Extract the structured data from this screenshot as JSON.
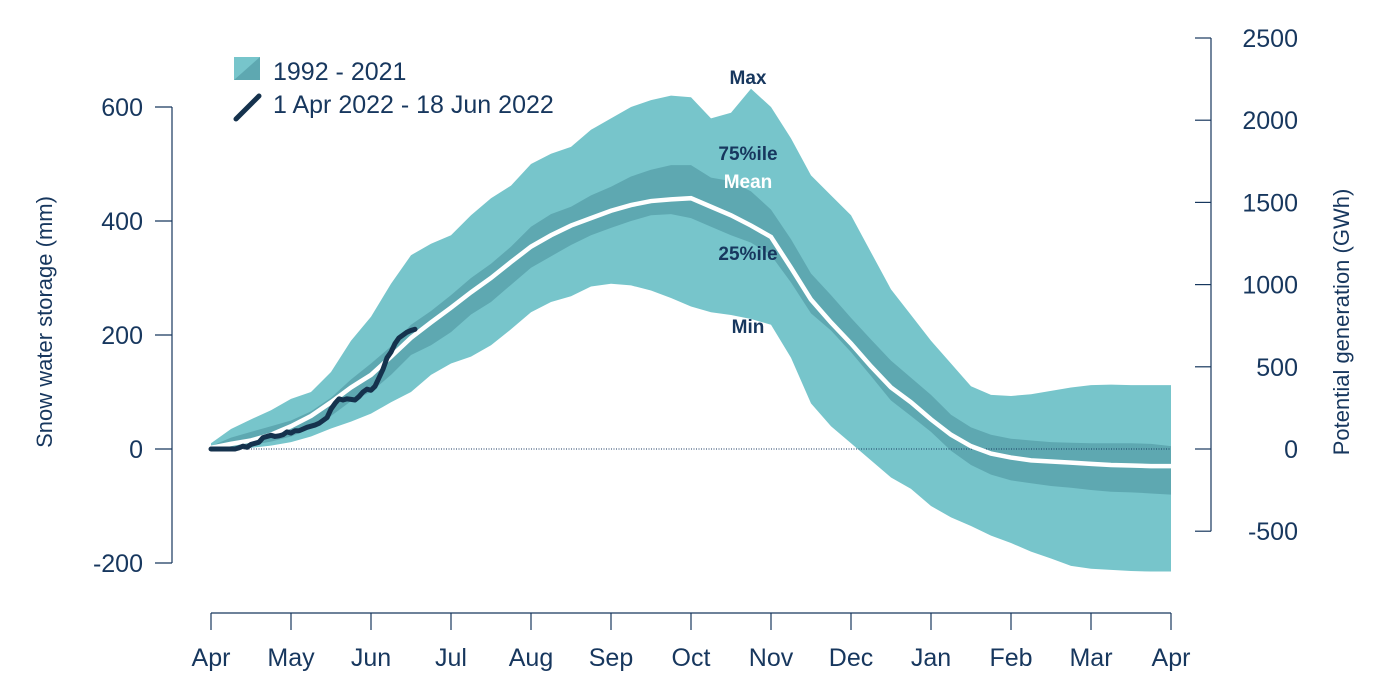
{
  "chart_data": {
    "type": "area",
    "colors": {
      "outer_band": "#77c5cb",
      "inner_band": "#5ea8b1",
      "mean_line": "#ffffff",
      "current_line": "#15324d",
      "text": "#17375e"
    },
    "xlabel": "",
    "ylabel": "Snow water storage (mm)",
    "y2label": "Potential generation (GWh)",
    "ylim": [
      -200,
      600
    ],
    "y2lim": [
      -500,
      2500
    ],
    "x_ticks": [
      "Apr",
      "May",
      "Jun",
      "Jul",
      "Aug",
      "Sep",
      "Oct",
      "Nov",
      "Dec",
      "Jan",
      "Feb",
      "Mar",
      "Apr"
    ],
    "y_ticks": [
      "-200",
      "0",
      "200",
      "400",
      "600"
    ],
    "y2_ticks": [
      "-500",
      "0",
      "500",
      "1000",
      "1500",
      "2000",
      "2500"
    ],
    "y_tick_values": [
      -200,
      0,
      200,
      400,
      600
    ],
    "y2_tick_values": [
      -500,
      0,
      500,
      1000,
      1500,
      2000,
      2500
    ],
    "legend": {
      "placement": "top-left",
      "entries": [
        "1992 - 2021",
        "1 Apr 2022 - 18 Jun 2022"
      ]
    },
    "annotations": {
      "max": "Max",
      "p75": "75%ile",
      "mean": "Mean",
      "p25": "25%ile",
      "min": "Min"
    },
    "months": [
      0,
      0.25,
      0.5,
      0.75,
      1,
      1.25,
      1.5,
      1.75,
      2,
      2.25,
      2.5,
      2.75,
      3,
      3.25,
      3.5,
      3.75,
      4,
      4.25,
      4.5,
      4.75,
      5,
      5.25,
      5.5,
      5.75,
      6,
      6.25,
      6.5,
      6.75,
      7,
      7.25,
      7.5,
      7.75,
      8,
      8.25,
      8.5,
      8.75,
      9,
      9.25,
      9.5,
      9.75,
      10,
      10.25,
      10.5,
      10.75,
      11,
      11.25,
      11.5,
      11.75,
      12
    ],
    "series": [
      {
        "name": "Max",
        "values": [
          10,
          35,
          52,
          68,
          88,
          100,
          135,
          190,
          232,
          290,
          340,
          360,
          375,
          410,
          440,
          462,
          500,
          518,
          530,
          560,
          580,
          600,
          612,
          620,
          617,
          580,
          590,
          632,
          600,
          545,
          480,
          445,
          410,
          345,
          280,
          235,
          190,
          150,
          110,
          95,
          93,
          96,
          102,
          108,
          112,
          113,
          112,
          112,
          112
        ]
      },
      {
        "name": "75%ile",
        "values": [
          5,
          20,
          30,
          40,
          50,
          66,
          90,
          122,
          150,
          180,
          218,
          242,
          270,
          300,
          325,
          355,
          390,
          412,
          425,
          445,
          460,
          478,
          490,
          498,
          498,
          476,
          470,
          452,
          420,
          368,
          308,
          270,
          230,
          192,
          155,
          125,
          95,
          60,
          38,
          25,
          18,
          15,
          12,
          11,
          10,
          10,
          10,
          9,
          5
        ]
      },
      {
        "name": "Mean",
        "values": [
          2,
          9,
          15,
          25,
          40,
          58,
          82,
          108,
          130,
          162,
          195,
          222,
          248,
          275,
          300,
          328,
          355,
          375,
          392,
          405,
          418,
          428,
          435,
          438,
          440,
          425,
          410,
          392,
          372,
          318,
          262,
          222,
          185,
          145,
          108,
          82,
          52,
          25,
          5,
          -8,
          -15,
          -20,
          -22,
          -24,
          -26,
          -28,
          -29,
          -30,
          -30
        ]
      },
      {
        "name": "25%ile",
        "values": [
          0,
          3,
          7,
          13,
          22,
          36,
          58,
          84,
          100,
          130,
          165,
          182,
          205,
          236,
          258,
          288,
          318,
          338,
          358,
          375,
          388,
          400,
          410,
          412,
          405,
          390,
          375,
          362,
          340,
          292,
          238,
          208,
          170,
          128,
          85,
          58,
          30,
          -3,
          -28,
          -45,
          -55,
          -60,
          -65,
          -68,
          -72,
          -75,
          -76,
          -78,
          -80
        ]
      },
      {
        "name": "Min",
        "values": [
          0,
          0,
          2,
          6,
          12,
          22,
          36,
          48,
          62,
          82,
          100,
          130,
          150,
          162,
          182,
          210,
          240,
          258,
          268,
          285,
          290,
          287,
          278,
          265,
          250,
          240,
          235,
          228,
          218,
          160,
          80,
          40,
          10,
          -20,
          -50,
          -70,
          -100,
          -120,
          -135,
          -152,
          -165,
          -180,
          -192,
          -205,
          -210,
          -212,
          -214,
          -215,
          -215
        ]
      },
      {
        "name": "1 Apr 2022 - 18 Jun 2022",
        "values": {
          "x": [
            0,
            0.1,
            0.2,
            0.3,
            0.35,
            0.4,
            0.45,
            0.5,
            0.55,
            0.6,
            0.65,
            0.7,
            0.75,
            0.8,
            0.85,
            0.9,
            0.95,
            1.0,
            1.05,
            1.1,
            1.15,
            1.2,
            1.25,
            1.3,
            1.35,
            1.4,
            1.45,
            1.5,
            1.55,
            1.6,
            1.65,
            1.7,
            1.75,
            1.8,
            1.85,
            1.9,
            1.95,
            2.0,
            2.05,
            2.1,
            2.15,
            2.2,
            2.25,
            2.3,
            2.35,
            2.4,
            2.45,
            2.5,
            2.55
          ],
          "y": [
            0,
            0,
            0,
            0,
            2,
            5,
            3,
            8,
            10,
            12,
            20,
            22,
            24,
            22,
            23,
            25,
            30,
            28,
            32,
            32,
            35,
            38,
            40,
            42,
            45,
            50,
            55,
            70,
            80,
            88,
            86,
            88,
            87,
            86,
            92,
            100,
            105,
            103,
            110,
            125,
            140,
            160,
            170,
            185,
            195,
            200,
            205,
            208,
            210
          ]
        }
      }
    ]
  }
}
